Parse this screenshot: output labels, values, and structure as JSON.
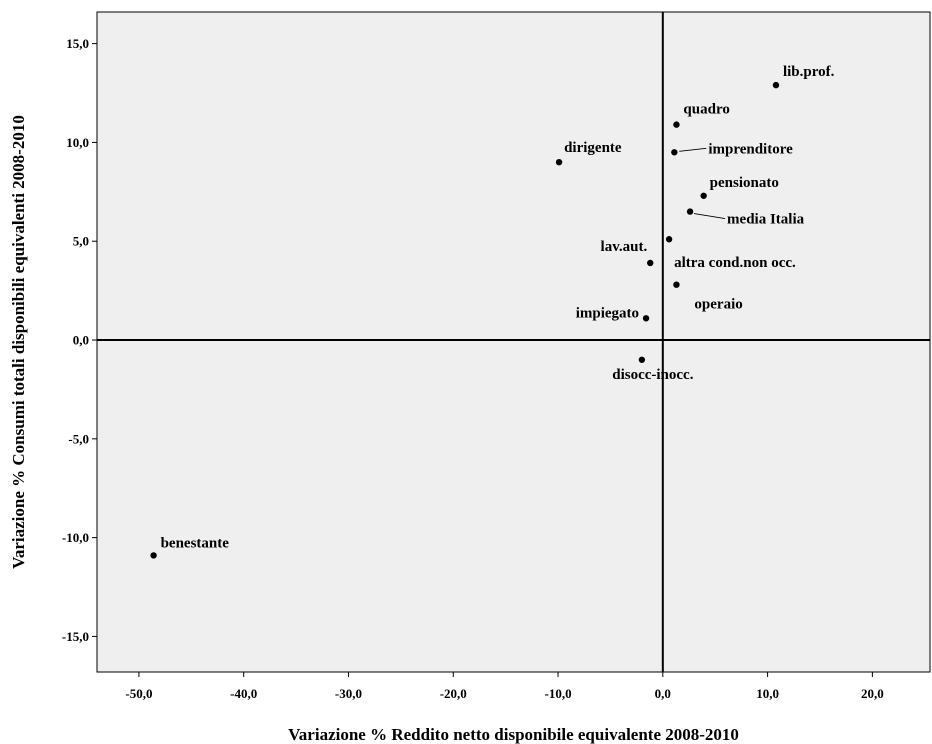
{
  "chart_data": {
    "type": "scatter",
    "title": "",
    "xlabel": "Variazione % Reddito netto disponibile equivalente 2008-2010",
    "ylabel": "Variazione % Consumi totali disponibili equivalenti 2008-2010",
    "xlim": [
      -54,
      25.5
    ],
    "ylim": [
      -16.8,
      16.6
    ],
    "grid": false,
    "legend": "none",
    "reference_lines": {
      "x": 0,
      "y": 0
    },
    "x_ticks": [
      {
        "value": -50,
        "label": "-50,0"
      },
      {
        "value": -40,
        "label": "-40,0"
      },
      {
        "value": -30,
        "label": "-30,0"
      },
      {
        "value": -20,
        "label": "-20,0"
      },
      {
        "value": -10,
        "label": "-10,0"
      },
      {
        "value": 0,
        "label": "0,0"
      },
      {
        "value": 10,
        "label": "10,0"
      },
      {
        "value": 20,
        "label": "20,0"
      }
    ],
    "y_ticks": [
      {
        "value": 15,
        "label": "15,0"
      },
      {
        "value": 10,
        "label": "10,0"
      },
      {
        "value": 5,
        "label": "5,0"
      },
      {
        "value": 0,
        "label": "0,0"
      },
      {
        "value": -5,
        "label": "-5,0"
      },
      {
        "value": -10,
        "label": "-10,0"
      },
      {
        "value": -15,
        "label": "-15,0"
      }
    ],
    "points": [
      {
        "label": "lib.prof.",
        "x": 10.8,
        "y": 12.9
      },
      {
        "label": "quadro",
        "x": 1.3,
        "y": 10.9
      },
      {
        "label": "imprenditore",
        "x": 1.1,
        "y": 9.5
      },
      {
        "label": "dirigente",
        "x": -9.9,
        "y": 9.0
      },
      {
        "label": "pensionato",
        "x": 3.9,
        "y": 7.3
      },
      {
        "label": "media Italia",
        "x": 2.6,
        "y": 6.5
      },
      {
        "label": "altra cond.non occ.",
        "x": 0.6,
        "y": 5.1
      },
      {
        "label": "lav.aut.",
        "x": -1.2,
        "y": 3.9
      },
      {
        "label": "operaio",
        "x": 1.3,
        "y": 2.8
      },
      {
        "label": "impiegato",
        "x": -1.6,
        "y": 1.1
      },
      {
        "label": "disocc-inocc.",
        "x": -2.0,
        "y": -1.0
      },
      {
        "label": "benestante",
        "x": -48.6,
        "y": -10.9
      }
    ],
    "colors": {
      "plot_background": "#efefef",
      "points": "#000000",
      "axes": "#000000"
    }
  }
}
